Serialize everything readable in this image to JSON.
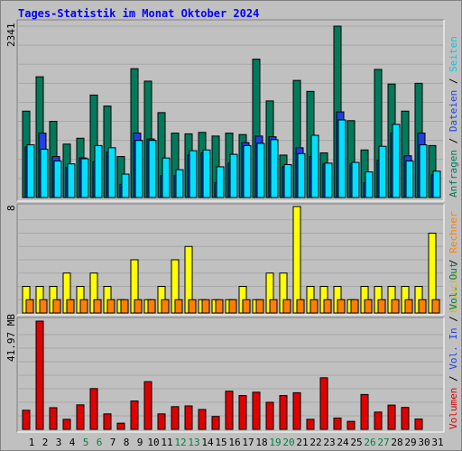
{
  "page": {
    "title": "Tages-Statistik im Monat Oktober 2024"
  },
  "chart_data": [
    {
      "type": "bar",
      "ylabel": "2341",
      "ylim": [
        0,
        2341
      ],
      "x": [
        "1",
        "2",
        "3",
        "4",
        "5",
        "6",
        "7",
        "8",
        "9",
        "10",
        "11",
        "12",
        "13",
        "14",
        "15",
        "16",
        "17",
        "18",
        "19",
        "20",
        "21",
        "22",
        "23",
        "24",
        "25",
        "26",
        "27",
        "28",
        "29",
        "30",
        "31"
      ],
      "series": [
        {
          "name": "Anfragen",
          "color": "#007a5a",
          "values": [
            1180,
            1650,
            1040,
            730,
            810,
            1400,
            1250,
            560,
            1760,
            1590,
            1160,
            880,
            870,
            890,
            840,
            880,
            860,
            1890,
            1320,
            580,
            1600,
            1450,
            610,
            2341,
            1050,
            650,
            1750,
            1550,
            1180,
            1560,
            710
          ]
        },
        {
          "name": "Dateien",
          "color": "#2040e0",
          "values": [
            690,
            880,
            560,
            410,
            540,
            490,
            620,
            180,
            880,
            800,
            300,
            300,
            580,
            610,
            200,
            470,
            750,
            840,
            830,
            420,
            680,
            560,
            460,
            1170,
            460,
            200,
            510,
            880,
            570,
            880,
            310
          ]
        },
        {
          "name": "Seiten",
          "color": "#00e0ff",
          "values": [
            720,
            660,
            500,
            460,
            530,
            710,
            680,
            320,
            780,
            780,
            540,
            380,
            640,
            650,
            420,
            590,
            710,
            740,
            790,
            450,
            600,
            850,
            470,
            1060,
            480,
            350,
            700,
            1000,
            500,
            720,
            360
          ]
        }
      ],
      "legend": [
        "Anfragen",
        "Dateien",
        "Seiten"
      ]
    },
    {
      "type": "bar",
      "ylabel": "8",
      "ylim": [
        0,
        8
      ],
      "x": [
        "1",
        "2",
        "3",
        "4",
        "5",
        "6",
        "7",
        "8",
        "9",
        "10",
        "11",
        "12",
        "13",
        "14",
        "15",
        "16",
        "17",
        "18",
        "19",
        "20",
        "21",
        "22",
        "23",
        "24",
        "25",
        "26",
        "27",
        "28",
        "29",
        "30",
        "31"
      ],
      "series": [
        {
          "name": "Besuche",
          "color": "#ffff00",
          "values": [
            2,
            2,
            2,
            3,
            2,
            3,
            2,
            1,
            4,
            1,
            2,
            4,
            5,
            1,
            1,
            1,
            2,
            1,
            3,
            3,
            8,
            2,
            2,
            2,
            1,
            2,
            2,
            2,
            2,
            2,
            6
          ]
        },
        {
          "name": "Rechner",
          "color": "#ff8000",
          "values": [
            1,
            1,
            1,
            1,
            1,
            1,
            1,
            1,
            1,
            1,
            1,
            1,
            1,
            1,
            1,
            1,
            1,
            1,
            1,
            1,
            1,
            1,
            1,
            1,
            1,
            1,
            1,
            1,
            1,
            1,
            1
          ]
        }
      ],
      "legend": [
        "Besuche",
        "Rechner"
      ]
    },
    {
      "type": "bar",
      "ylabel": "41.97 MB",
      "ylim": [
        0,
        41.97
      ],
      "x": [
        "1",
        "2",
        "3",
        "4",
        "5",
        "6",
        "7",
        "8",
        "9",
        "10",
        "11",
        "12",
        "13",
        "14",
        "15",
        "16",
        "17",
        "18",
        "19",
        "20",
        "21",
        "22",
        "23",
        "24",
        "25",
        "26",
        "27",
        "28",
        "29",
        "30",
        "31"
      ],
      "series": [
        {
          "name": "Volumen",
          "color": "#e00000",
          "values": [
            7.4,
            41.97,
            8.4,
            3.9,
            9.5,
            15.8,
            6.0,
            2.4,
            11.0,
            18.5,
            6.0,
            8.8,
            9.1,
            7.7,
            5.0,
            14.8,
            13.1,
            14.4,
            10.5,
            13.1,
            14.2,
            3.9,
            20.0,
            4.4,
            3.1,
            13.5,
            6.7,
            9.4,
            8.5,
            4.0,
            0
          ]
        }
      ],
      "legend": [
        "Volumen",
        "Vol. In",
        "Vol. Out"
      ]
    }
  ],
  "right_labels": {
    "top": [
      {
        "text": "Anfragen",
        "color": "#007a5a"
      },
      {
        "text": "Dateien",
        "color": "#2040e0"
      },
      {
        "text": "Seiten",
        "color": "#00c8e8"
      }
    ],
    "middle": [
      {
        "text": "Besuche",
        "color": "#d0c000"
      },
      {
        "text": "Rechner",
        "color": "#ff8000"
      }
    ],
    "bottom": [
      {
        "text": "Volumen",
        "color": "#e00000"
      },
      {
        "text": "Vol. In",
        "color": "#2040e0"
      },
      {
        "text": "Vol. Out",
        "color": "#007a5a"
      }
    ],
    "separator": " / "
  },
  "weekend_days": [
    "5",
    "6",
    "12",
    "13",
    "19",
    "20",
    "26",
    "27"
  ],
  "colors": {
    "title": "#0000ff",
    "weekday": "#000000",
    "weekend": "#008040",
    "background": "#c0c0c0",
    "grid": "#808080"
  }
}
